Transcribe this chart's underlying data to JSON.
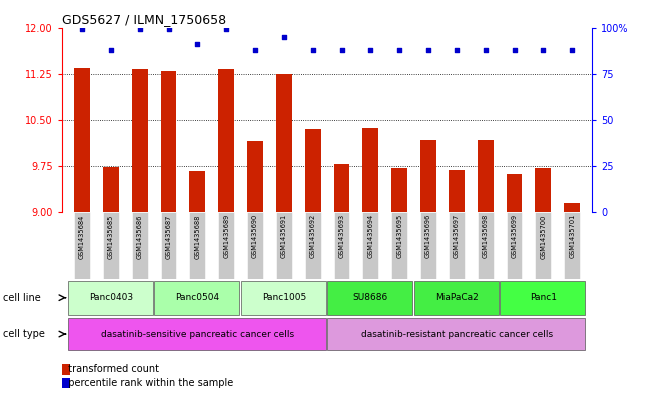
{
  "title": "GDS5627 / ILMN_1750658",
  "samples": [
    "GSM1435684",
    "GSM1435685",
    "GSM1435686",
    "GSM1435687",
    "GSM1435688",
    "GSM1435689",
    "GSM1435690",
    "GSM1435691",
    "GSM1435692",
    "GSM1435693",
    "GSM1435694",
    "GSM1435695",
    "GSM1435696",
    "GSM1435697",
    "GSM1435698",
    "GSM1435699",
    "GSM1435700",
    "GSM1435701"
  ],
  "transformed_counts": [
    11.35,
    9.73,
    11.32,
    11.3,
    9.67,
    11.32,
    10.15,
    11.25,
    10.35,
    9.78,
    10.37,
    9.72,
    10.17,
    9.68,
    10.18,
    9.62,
    9.72,
    9.15
  ],
  "percentile_ranks": [
    99,
    88,
    99,
    99,
    91,
    99,
    88,
    95,
    88,
    88,
    88,
    88,
    88,
    88,
    88,
    88,
    88,
    88
  ],
  "ylim_left": [
    9,
    12
  ],
  "yticks_left": [
    9,
    9.75,
    10.5,
    11.25,
    12
  ],
  "ylim_right": [
    0,
    100
  ],
  "yticks_right": [
    0,
    25,
    50,
    75,
    100
  ],
  "bar_color": "#cc2200",
  "dot_color": "#0000cc",
  "cell_lines": [
    {
      "name": "Panc0403",
      "start": 0,
      "end": 3,
      "color": "#ccffcc"
    },
    {
      "name": "Panc0504",
      "start": 3,
      "end": 6,
      "color": "#aaffaa"
    },
    {
      "name": "Panc1005",
      "start": 6,
      "end": 9,
      "color": "#ccffcc"
    },
    {
      "name": "SU8686",
      "start": 9,
      "end": 12,
      "color": "#44ee44"
    },
    {
      "name": "MiaPaCa2",
      "start": 12,
      "end": 15,
      "color": "#44ee44"
    },
    {
      "name": "Panc1",
      "start": 15,
      "end": 18,
      "color": "#44ff44"
    }
  ],
  "cell_types": [
    {
      "name": "dasatinib-sensitive pancreatic cancer cells",
      "start": 0,
      "end": 9,
      "color": "#ee55ee"
    },
    {
      "name": "dasatinib-resistant pancreatic cancer cells",
      "start": 9,
      "end": 18,
      "color": "#dd99dd"
    }
  ],
  "bg_color": "#ffffff",
  "tick_area_bg": "#c8c8c8"
}
